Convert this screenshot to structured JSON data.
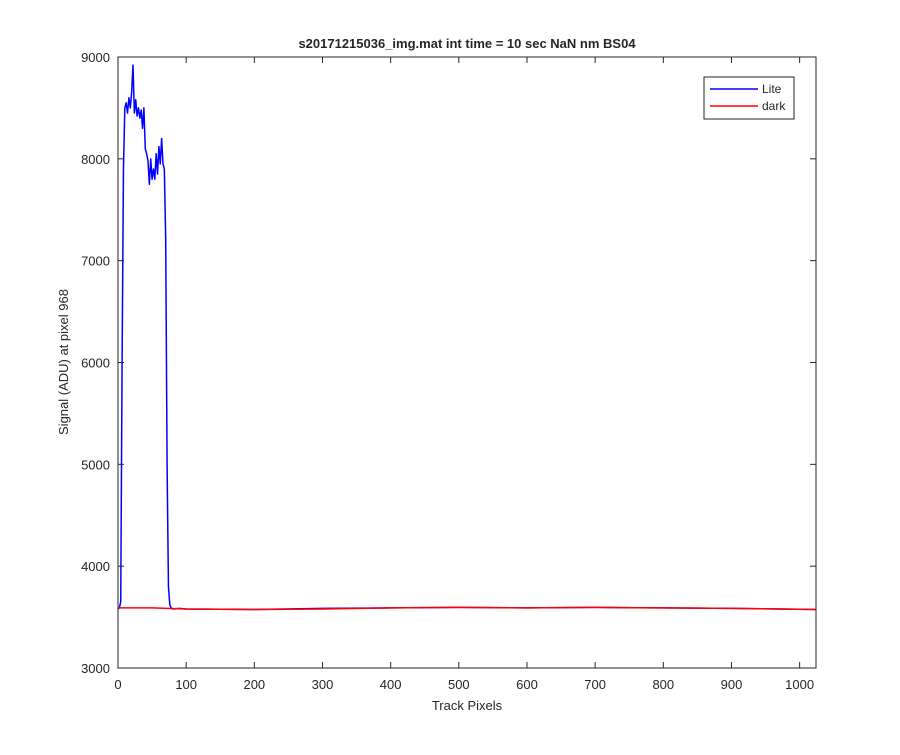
{
  "chart_data": {
    "type": "line",
    "title": "s20171215036_img.mat int time = 10 sec  NaN nm BS04",
    "xlabel": "Track Pixels",
    "ylabel": "Signal (ADU) at pixel 968",
    "xlim": [
      0,
      1024
    ],
    "ylim": [
      3000,
      9000
    ],
    "xticks": [
      0,
      100,
      200,
      300,
      400,
      500,
      600,
      700,
      800,
      900,
      1000
    ],
    "yticks": [
      3000,
      4000,
      5000,
      6000,
      7000,
      8000,
      9000
    ],
    "grid": false,
    "legend_position": "top-right",
    "series": [
      {
        "name": "Lite",
        "color": "#0000ff",
        "x": [
          0,
          2,
          4,
          6,
          8,
          10,
          12,
          14,
          16,
          18,
          20,
          22,
          24,
          26,
          28,
          30,
          32,
          34,
          36,
          38,
          40,
          42,
          44,
          46,
          48,
          50,
          52,
          54,
          56,
          58,
          60,
          62,
          64,
          66,
          68,
          70,
          72,
          74,
          76,
          78,
          80,
          90,
          100,
          200,
          300,
          400,
          500,
          600,
          700,
          800,
          900,
          1024
        ],
        "y": [
          3580,
          3590,
          3650,
          6000,
          7900,
          8500,
          8550,
          8450,
          8600,
          8500,
          8650,
          8920,
          8450,
          8580,
          8420,
          8500,
          8400,
          8480,
          8300,
          8500,
          8100,
          8050,
          7980,
          7750,
          8000,
          7800,
          7900,
          7800,
          8050,
          7850,
          8120,
          7950,
          8200,
          7950,
          7900,
          7200,
          5000,
          3800,
          3620,
          3590,
          3580,
          3585,
          3580,
          3575,
          3585,
          3590,
          3595,
          3590,
          3595,
          3590,
          3585,
          3575
        ]
      },
      {
        "name": "dark",
        "color": "#ff0000",
        "x": [
          0,
          50,
          100,
          200,
          300,
          400,
          500,
          600,
          700,
          800,
          900,
          1024
        ],
        "y": [
          3590,
          3590,
          3580,
          3575,
          3580,
          3590,
          3595,
          3590,
          3595,
          3590,
          3585,
          3575
        ]
      }
    ]
  }
}
